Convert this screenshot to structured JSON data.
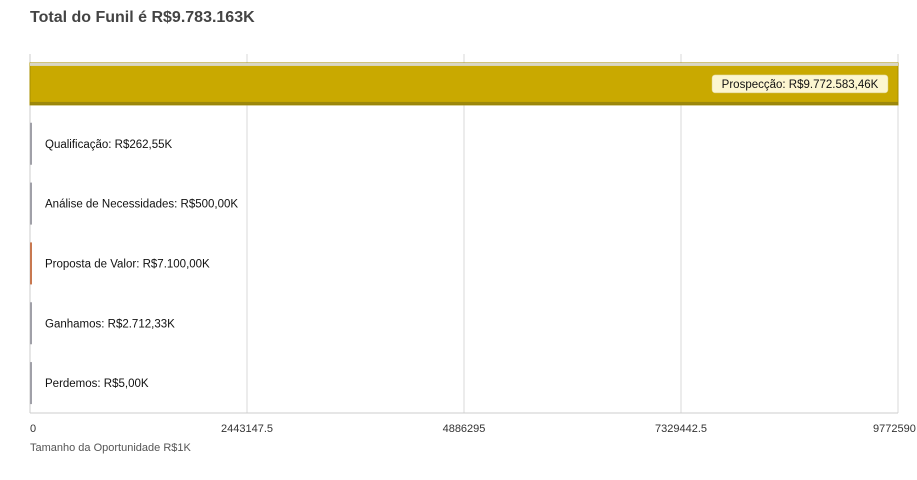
{
  "title": "Total do Funil é R$9.783.163K",
  "chart_data": {
    "type": "bar",
    "orientation": "horizontal",
    "title": "Total do Funil é R$9.783.163K",
    "xlabel": "Tamanho da Oportunidade R$1K",
    "ylabel": "",
    "xlim": [
      0,
      9772590
    ],
    "x_ticks": [
      "0",
      "2443147.5",
      "4886295",
      "7329442.5",
      "9772590"
    ],
    "grid": true,
    "categories": [
      "Prospecção",
      "Qualificação",
      "Análise de Necessidades",
      "Proposta de Valor",
      "Ganhamos",
      "Perdemos"
    ],
    "values": [
      9772583.46,
      262.55,
      500.0,
      7100.0,
      2712.33,
      5.0
    ],
    "data_labels": [
      "Prospecção: R$9.772.583,46K",
      "Qualificação: R$262,55K",
      "Análise de Necessidades: R$500,00K",
      "Proposta de Valor: R$7.100,00K",
      "Ganhamos: R$2.712,33K",
      "Perdemos: R$5,00K"
    ],
    "colors": [
      "#c9a900",
      "#a0a0a8",
      "#a0a0a8",
      "#c87850",
      "#a0a0a8",
      "#a0a0a8"
    ]
  }
}
